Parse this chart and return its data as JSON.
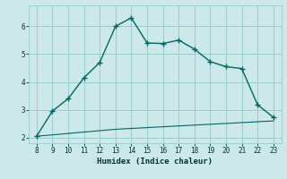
{
  "xlabel": "Humidex (Indice chaleur)",
  "x": [
    8,
    9,
    10,
    11,
    12,
    13,
    14,
    15,
    16,
    17,
    18,
    19,
    20,
    21,
    22,
    23
  ],
  "y_main": [
    2.05,
    2.95,
    3.4,
    4.15,
    4.7,
    6.0,
    6.3,
    5.4,
    5.38,
    5.5,
    5.18,
    4.73,
    4.55,
    4.48,
    3.18,
    2.73
  ],
  "y_line": [
    2.05,
    2.1,
    2.15,
    2.2,
    2.25,
    2.3,
    2.33,
    2.36,
    2.39,
    2.42,
    2.45,
    2.48,
    2.51,
    2.54,
    2.57,
    2.6
  ],
  "line_color": "#006666",
  "bg_color": "#cce8e8",
  "grid_color": "#99cccc",
  "ylim": [
    1.8,
    6.75
  ],
  "xlim": [
    7.5,
    23.5
  ],
  "yticks": [
    2,
    3,
    4,
    5,
    6
  ],
  "xticks": [
    8,
    9,
    10,
    11,
    12,
    13,
    14,
    15,
    16,
    17,
    18,
    19,
    20,
    21,
    22,
    23
  ]
}
